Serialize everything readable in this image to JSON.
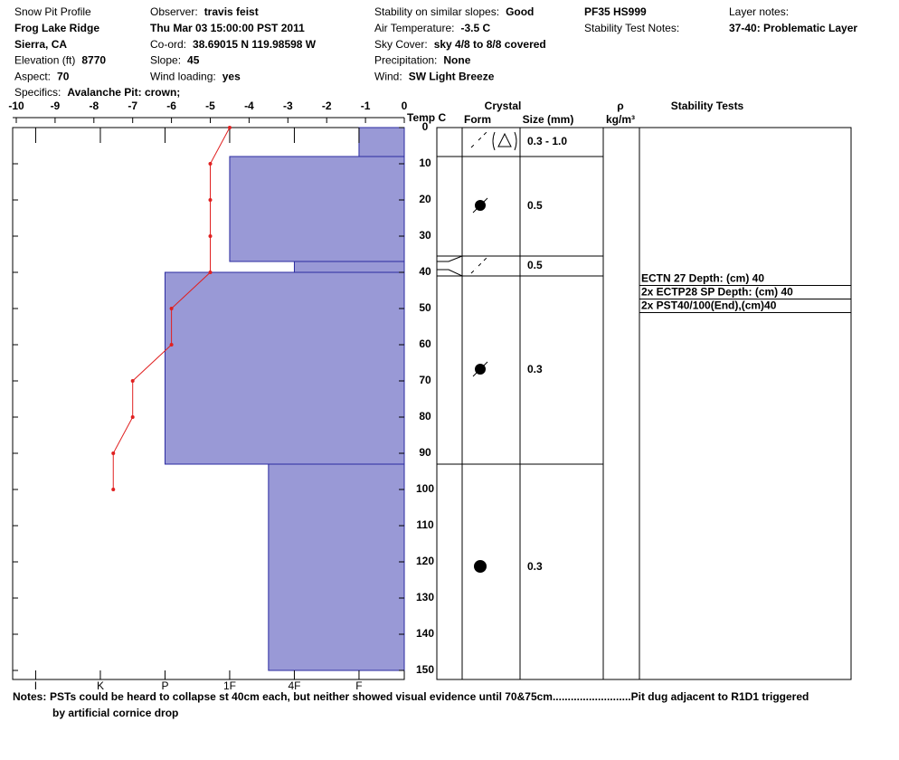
{
  "header": {
    "columns": [
      [
        {
          "text": "Snow Pit Profile"
        },
        {
          "value": "Frog Lake Ridge"
        },
        {
          "value": "Sierra, CA"
        },
        {
          "label": "Elevation (ft)",
          "value": 8770
        },
        {
          "label": "Aspect:",
          "value": 70
        },
        {
          "label": "Specifics:",
          "value": "Avalanche Pit: crown;"
        }
      ],
      [
        {
          "label": "Observer:",
          "value": "travis feist"
        },
        {
          "value": "Thu Mar 03 15:00:00 PST 2011"
        },
        {
          "label": "Co-ord:",
          "value": "38.69015 N 119.98598 W"
        },
        {
          "label": "Slope:",
          "value": 45
        },
        {
          "label": "Wind loading:",
          "value": "yes"
        }
      ],
      [
        {
          "label": "Stability on similar slopes:",
          "value": "Good"
        },
        {
          "label": "Air Temperature:",
          "value": "-3.5 C"
        },
        {
          "label": "Sky Cover:",
          "value": "sky 4/8 to 8/8 covered"
        },
        {
          "label": "Precipitation:",
          "value": "None"
        },
        {
          "label": "Wind:",
          "value": "SW Light Breeze"
        }
      ],
      [
        {
          "value": "PF35 HS999"
        },
        {
          "label": "Stability Test Notes:"
        }
      ],
      [
        {
          "label": "Layer notes:"
        },
        {
          "value": "37-40: Problematic Layer"
        }
      ]
    ]
  },
  "chart_data": {
    "type": "snowpit",
    "temperature": {
      "axis_label": "Temp C",
      "xlim": [
        -10,
        0
      ],
      "xticks": [
        -10,
        -9,
        -8,
        -7,
        -6,
        -5,
        -4,
        -3,
        -2,
        -1,
        0
      ],
      "color": "#e02020",
      "depths": [
        0,
        10,
        20,
        30,
        40,
        50,
        60,
        70,
        80,
        90,
        100
      ],
      "values": [
        -4.5,
        -5,
        -5,
        -5,
        -5,
        -6,
        -6,
        -7,
        -7,
        -7.5,
        -7.5
      ]
    },
    "depth": {
      "ylim": [
        0,
        150
      ],
      "yticks": [
        0,
        10,
        20,
        30,
        40,
        50,
        60,
        70,
        80,
        90,
        100,
        110,
        120,
        130,
        140,
        150
      ]
    },
    "hardness": {
      "xlim": [
        6.3,
        0.3
      ],
      "color": "#9999d6",
      "xticks": [
        {
          "value": 6,
          "label": "I"
        },
        {
          "value": 5,
          "label": "K"
        },
        {
          "value": 4,
          "label": "P"
        },
        {
          "value": 3,
          "label": "1F"
        },
        {
          "value": 2,
          "label": "4F"
        },
        {
          "value": 1,
          "label": "F"
        }
      ],
      "layers": [
        {
          "top": 0,
          "bottom": 8,
          "value": 1
        },
        {
          "top": 8,
          "bottom": 37,
          "value": 3
        },
        {
          "top": 37,
          "bottom": 40,
          "value": 2
        },
        {
          "top": 40,
          "bottom": 93,
          "value": 4
        },
        {
          "top": 93,
          "bottom": 150,
          "value": 2.4
        }
      ]
    },
    "crystal_table": {
      "title": "Crystal",
      "form_label": "Form",
      "size_label": "Size (mm)",
      "density_label": "ρ",
      "density_unit": "kg/m³",
      "layers": [
        {
          "top": 0,
          "bottom": 8,
          "size": "0.3 - 1.0"
        },
        {
          "top": 8,
          "bottom": 35.5,
          "size": "0.5"
        },
        {
          "top": 35.5,
          "bottom": 41,
          "size": "0.5"
        },
        {
          "top": 41,
          "bottom": 93,
          "size": "0.3"
        },
        {
          "top": 93,
          "bottom": 150,
          "size": "0.3"
        }
      ]
    },
    "stability_tests": {
      "title": "Stability Tests",
      "tests": [
        "ECTN 27   Depth: (cm) 40",
        "2x ECTP28 SP Depth: (cm) 40",
        "2x PST40/100(End),(cm)40"
      ]
    }
  },
  "notes": {
    "label": "Notes:",
    "lines": [
      "PSTs could be heard to collapse st 40cm each, but neither showed visual evidence until 70&75cm..........................Pit dug adjacent to R1D1 triggered",
      "by artificial cornice drop"
    ]
  }
}
